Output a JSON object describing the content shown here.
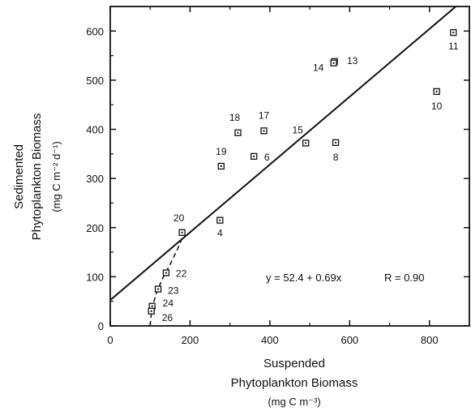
{
  "chart_data": {
    "type": "scatter",
    "xlabel": "Suspended",
    "xlabel_line2": "Phytoplankton Biomass",
    "xlabel_units": "(mg C m⁻³)",
    "ylabel": "Sedimented",
    "ylabel_line2": "Phytoplankton Biomass",
    "ylabel_units": "(mg C m⁻² d⁻¹)",
    "xlim": [
      0,
      900
    ],
    "ylim": [
      0,
      650
    ],
    "xticks": [
      0,
      200,
      400,
      600,
      800
    ],
    "yticks": [
      0,
      100,
      200,
      300,
      400,
      500,
      600
    ],
    "xtick_labels": [
      "0",
      "200",
      "400",
      "600",
      "800"
    ],
    "ytick_labels": [
      "0",
      "100",
      "200",
      "300",
      "400",
      "500",
      "600"
    ],
    "grid": false,
    "points": [
      {
        "label": "4",
        "x": 275,
        "y": 215
      },
      {
        "label": "6",
        "x": 360,
        "y": 345
      },
      {
        "label": "8",
        "x": 565,
        "y": 373
      },
      {
        "label": "10",
        "x": 818,
        "y": 477
      },
      {
        "label": "11",
        "x": 860,
        "y": 597
      },
      {
        "label": "13",
        "x": 562,
        "y": 538
      },
      {
        "label": "14",
        "x": 560,
        "y": 535
      },
      {
        "label": "15",
        "x": 490,
        "y": 372
      },
      {
        "label": "17",
        "x": 385,
        "y": 397
      },
      {
        "label": "18",
        "x": 320,
        "y": 393
      },
      {
        "label": "19",
        "x": 278,
        "y": 325
      },
      {
        "label": "20",
        "x": 180,
        "y": 190
      },
      {
        "label": "22",
        "x": 140,
        "y": 108
      },
      {
        "label": "23",
        "x": 120,
        "y": 75
      },
      {
        "label": "24",
        "x": 105,
        "y": 40
      },
      {
        "label": "26",
        "x": 103,
        "y": 30
      }
    ],
    "regression": {
      "equation": "y = 52.4 + 0.69x",
      "r_text": "R = 0.90",
      "intercept": 52.4,
      "slope": 0.69
    },
    "dashed_curve": [
      [
        100,
        0
      ],
      [
        104,
        35
      ],
      [
        115,
        65
      ],
      [
        130,
        95
      ],
      [
        150,
        125
      ],
      [
        168,
        155
      ],
      [
        182,
        182
      ]
    ]
  }
}
